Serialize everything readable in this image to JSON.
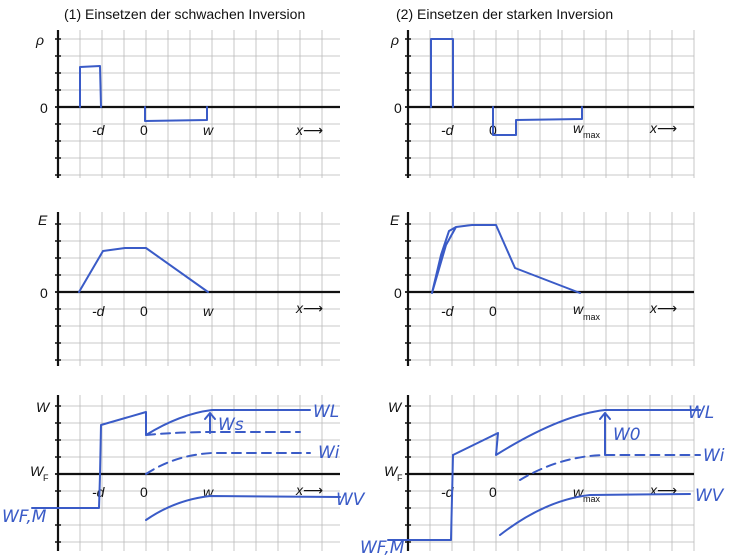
{
  "titles": {
    "left": "(1) Einsetzen der schwachen Inversion",
    "right": "(2) Einsetzen der starken Inversion"
  },
  "axis_labels": {
    "rho": "ρ",
    "E": "E",
    "W": "W",
    "WF": "W",
    "WF_sub": "F",
    "zero": "0",
    "minus_d": "-d",
    "w": "w",
    "w_max": "w",
    "w_max_sub": "max",
    "x_arrow": "x⟶"
  },
  "handwriting": {
    "WL": "WL",
    "Wi": "Wi",
    "WV": "WV",
    "WFM": "WF,M",
    "Ws_left": "Ws",
    "Ws_right": "W0"
  },
  "colors": {
    "ink": "#3a5bc7",
    "grid": "#b9b9b9",
    "axis": "#111111"
  }
}
